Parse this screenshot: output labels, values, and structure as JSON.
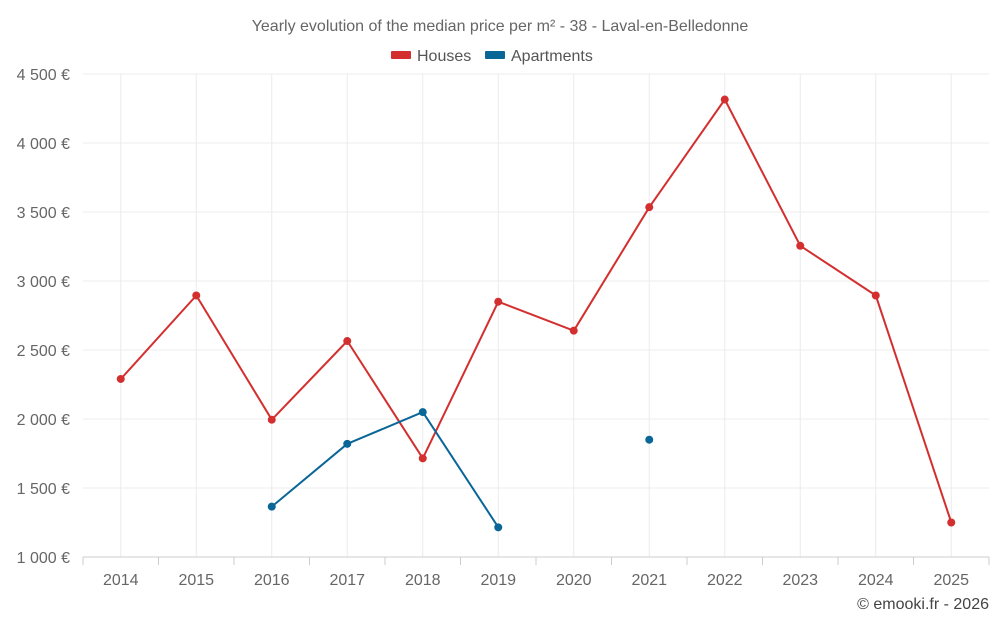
{
  "chart_data": {
    "type": "line",
    "title": "Yearly evolution of the median price per m² - 38 - Laval-en-Belledonne",
    "xlabel": "",
    "ylabel": "",
    "categories": [
      "2014",
      "2015",
      "2016",
      "2017",
      "2018",
      "2019",
      "2020",
      "2021",
      "2022",
      "2023",
      "2024",
      "2025"
    ],
    "ylim": [
      1000,
      4500
    ],
    "yticks": [
      1000,
      1500,
      2000,
      2500,
      3000,
      3500,
      4000,
      4500
    ],
    "ytick_labels": [
      "1 000 €",
      "1 500 €",
      "2 000 €",
      "2 500 €",
      "3 000 €",
      "3 500 €",
      "4 000 €",
      "4 500 €"
    ],
    "grid": true,
    "legend_position": "top-center",
    "series": [
      {
        "name": "Houses",
        "color": "#d32f2f",
        "values": [
          2290,
          2895,
          1995,
          2565,
          1715,
          2850,
          2640,
          3535,
          4315,
          3255,
          2895,
          1250
        ]
      },
      {
        "name": "Apartments",
        "color": "#0b6698",
        "values": [
          null,
          null,
          1365,
          1820,
          2050,
          1215,
          null,
          1850,
          null,
          null,
          null,
          null
        ]
      }
    ]
  },
  "credit": "© emooki.fr - 2026"
}
